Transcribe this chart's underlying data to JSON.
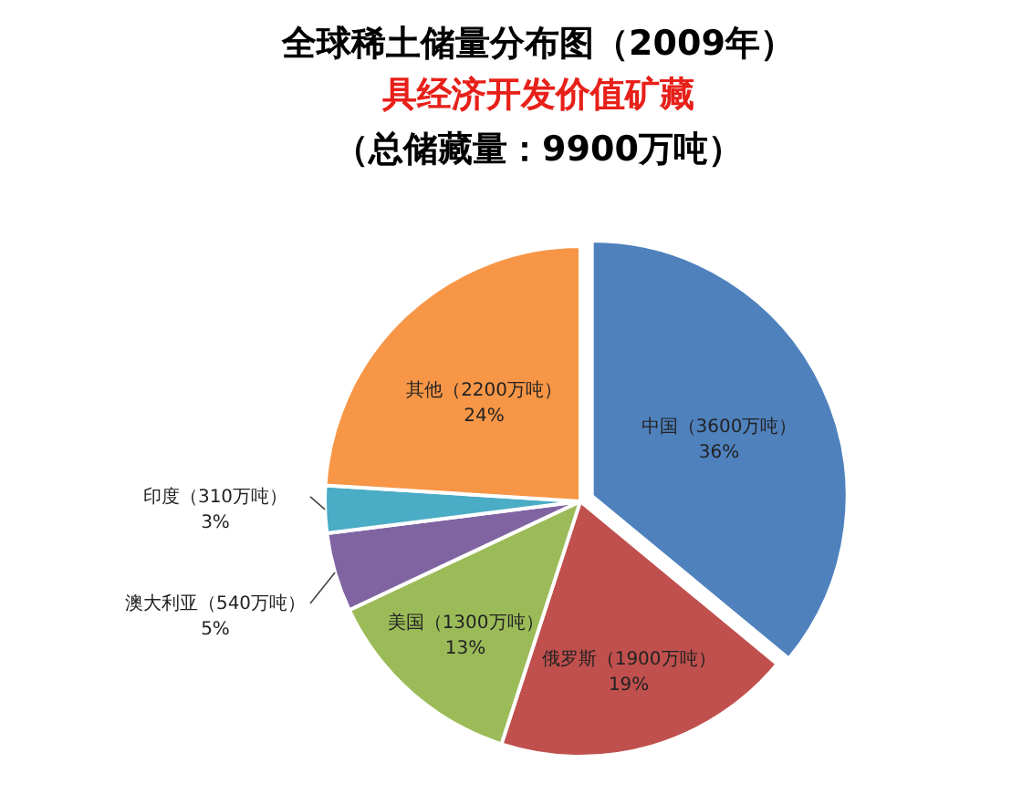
{
  "chart_data": {
    "type": "pie",
    "title": "全球稀土储量分布图（2009年）",
    "subtitle": "具经济开发价值矿藏",
    "annotations": [
      "（总储藏量：9900万吨）"
    ],
    "categories": [
      "中国（3600万吨）",
      "俄罗斯（1900万吨）",
      "美国（1300万吨）",
      "澳大利亚（540万吨）",
      "印度（310万吨）",
      "其他（2200万吨）"
    ],
    "values": [
      36,
      19,
      13,
      5,
      3,
      24
    ],
    "value_labels": [
      "36%",
      "19%",
      "13%",
      "5%",
      "3%",
      "24%"
    ],
    "colors": [
      "#4f81bd",
      "#c0504d",
      "#9bbb59",
      "#8064a2",
      "#4bacc6",
      "#f79646"
    ]
  }
}
